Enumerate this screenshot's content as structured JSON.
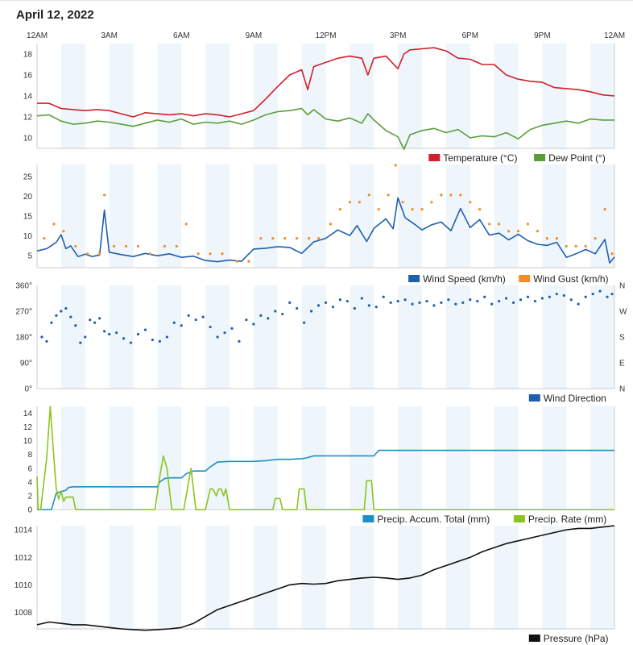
{
  "page_title": "April 12, 2022",
  "chart_data": [
    {
      "type": "line",
      "id": "temp",
      "x_ticks": [
        "12AM",
        "3AM",
        "6AM",
        "9AM",
        "12PM",
        "3PM",
        "6PM",
        "9PM",
        "12AM"
      ],
      "x_range_hours": [
        0,
        24
      ],
      "ylim": [
        9,
        19
      ],
      "y_ticks": [
        10,
        12,
        14,
        16,
        18
      ],
      "series": [
        {
          "name": "Temperature (°C)",
          "color": "#d0202a",
          "x": [
            0,
            0.5,
            1,
            1.5,
            2,
            2.5,
            3,
            3.5,
            4,
            4.5,
            5,
            5.5,
            6,
            6.5,
            7,
            7.5,
            8,
            8.5,
            9,
            9.5,
            10,
            10.5,
            11,
            11.25,
            11.5,
            12,
            12.5,
            13,
            13.5,
            13.75,
            14,
            14.5,
            15,
            15.25,
            15.5,
            16,
            16.5,
            17,
            17.5,
            18,
            18.5,
            19,
            19.5,
            20,
            20.5,
            21,
            21.5,
            22,
            22.5,
            23,
            23.5,
            24
          ],
          "y": [
            13.3,
            13.3,
            12.8,
            12.7,
            12.6,
            12.7,
            12.6,
            12.3,
            12.0,
            12.4,
            12.3,
            12.2,
            12.3,
            12.1,
            12.3,
            12.2,
            12.0,
            12.3,
            12.6,
            13.7,
            14.9,
            16.0,
            16.5,
            14.6,
            16.8,
            17.2,
            17.6,
            17.8,
            17.6,
            16.0,
            17.6,
            17.8,
            16.6,
            18.0,
            18.4,
            18.5,
            18.6,
            18.3,
            17.6,
            17.5,
            17.0,
            17.0,
            16.0,
            15.6,
            15.4,
            15.3,
            14.8,
            14.7,
            14.6,
            14.4,
            14.1,
            14.0
          ]
        },
        {
          "name": "Dew Point (°)",
          "color": "#5a9e3a",
          "x": [
            0,
            0.5,
            1,
            1.5,
            2,
            2.5,
            3,
            3.5,
            4,
            4.5,
            5,
            5.5,
            6,
            6.5,
            7,
            7.5,
            8,
            8.5,
            9,
            9.5,
            10,
            10.5,
            11,
            11.25,
            11.5,
            12,
            12.5,
            13,
            13.5,
            13.75,
            14,
            14.5,
            15,
            15.25,
            15.5,
            16,
            16.5,
            17,
            17.5,
            18,
            18.5,
            19,
            19.5,
            20,
            20.5,
            21,
            21.5,
            22,
            22.5,
            23,
            23.5,
            24
          ],
          "y": [
            12.1,
            12.2,
            11.6,
            11.3,
            11.4,
            11.6,
            11.5,
            11.3,
            11.1,
            11.4,
            11.7,
            11.5,
            11.8,
            11.3,
            11.5,
            11.4,
            11.6,
            11.3,
            11.7,
            12.2,
            12.5,
            12.6,
            12.8,
            12.2,
            12.7,
            11.8,
            11.6,
            11.9,
            11.4,
            12.3,
            11.7,
            10.7,
            10.1,
            8.9,
            10.3,
            10.7,
            10.9,
            10.5,
            10.8,
            10.0,
            10.2,
            10.1,
            10.5,
            9.9,
            10.8,
            11.2,
            11.4,
            11.6,
            11.4,
            11.8,
            11.7,
            11.7
          ]
        }
      ],
      "legend": [
        "Temperature (°C)",
        "Dew Point (°)"
      ]
    },
    {
      "type": "line+scatter",
      "id": "wind",
      "ylim": [
        2,
        28
      ],
      "y_ticks": [
        5,
        10,
        15,
        20,
        25
      ],
      "series": [
        {
          "name": "Wind Speed (km/h)",
          "color": "#1f5fae",
          "kind": "line",
          "x": [
            0,
            0.4,
            0.8,
            1.0,
            1.2,
            1.4,
            1.7,
            2,
            2.3,
            2.6,
            2.8,
            3,
            3.5,
            4,
            4.5,
            5,
            5.5,
            6,
            6.5,
            7,
            7.5,
            8,
            8.5,
            9,
            9.5,
            10,
            10.5,
            11,
            11.5,
            12,
            12.5,
            13,
            13.3,
            13.7,
            14,
            14.5,
            14.8,
            15,
            15.3,
            15.7,
            16,
            16.4,
            16.8,
            17.2,
            17.6,
            18,
            18.4,
            18.8,
            19.2,
            19.6,
            20,
            20.4,
            20.8,
            21.2,
            21.6,
            22,
            22.4,
            22.8,
            23.2,
            23.6,
            23.8,
            24
          ],
          "y": [
            6.2,
            6.8,
            8.4,
            10.3,
            6.8,
            7.5,
            4.8,
            5.4,
            4.8,
            5.2,
            16.5,
            5.9,
            5.3,
            4.8,
            5.6,
            5.0,
            5.5,
            4.6,
            4.9,
            3.8,
            3.5,
            3.9,
            3.6,
            6.7,
            6.9,
            7.3,
            7.1,
            5.6,
            8.5,
            9.4,
            11.5,
            10.1,
            12.6,
            8.6,
            11.9,
            14.3,
            11.8,
            19.6,
            14.6,
            12.9,
            11.5,
            12.8,
            13.5,
            11.3,
            16.9,
            12.1,
            14.1,
            10.2,
            10.7,
            9.0,
            10.4,
            8.8,
            7.9,
            7.6,
            8.4,
            4.6,
            5.5,
            6.6,
            5.5,
            9.1,
            3.2,
            4.7
          ]
        },
        {
          "name": "Wind Gust (km/h)",
          "color": "#f28c28",
          "kind": "scatter",
          "x": [
            0.3,
            0.7,
            1.1,
            1.6,
            2.1,
            2.6,
            2.8,
            3.2,
            3.7,
            4.2,
            4.7,
            5.3,
            5.8,
            6.2,
            6.7,
            7.2,
            7.7,
            8.3,
            8.8,
            9.3,
            9.8,
            10.3,
            10.8,
            11.3,
            11.7,
            12.2,
            12.6,
            13.0,
            13.4,
            13.8,
            14.2,
            14.6,
            14.9,
            15.2,
            15.6,
            16.0,
            16.4,
            16.8,
            17.2,
            17.6,
            18.0,
            18.4,
            18.8,
            19.2,
            19.6,
            20.0,
            20.4,
            20.8,
            21.2,
            21.6,
            22.0,
            22.4,
            22.8,
            23.2,
            23.6,
            23.9
          ],
          "y": [
            9.4,
            13.0,
            11.2,
            7.4,
            5.5,
            5.5,
            20.3,
            7.4,
            7.4,
            7.4,
            5.5,
            7.4,
            7.4,
            13.0,
            5.5,
            5.5,
            5.5,
            3.6,
            3.6,
            9.4,
            9.4,
            9.4,
            9.4,
            9.4,
            9.4,
            13.0,
            16.7,
            18.5,
            18.5,
            20.3,
            16.7,
            20.3,
            27.8,
            18.5,
            16.7,
            16.7,
            18.5,
            20.3,
            20.3,
            20.3,
            18.5,
            16.7,
            13.0,
            13.0,
            11.2,
            11.2,
            13.0,
            11.2,
            9.4,
            9.4,
            7.4,
            7.4,
            7.4,
            9.4,
            16.7,
            5.5
          ]
        }
      ],
      "legend": [
        "Wind Speed (km/h)",
        "Wind Gust (km/h)"
      ]
    },
    {
      "type": "scatter",
      "id": "direction",
      "ylim": [
        0,
        360
      ],
      "y_ticks": [
        0,
        90,
        180,
        270,
        360
      ],
      "y_tick_labels": [
        "0°",
        "90°",
        "180°",
        "270°",
        "360°"
      ],
      "right_labels": [
        "N",
        "E",
        "S",
        "W",
        "N"
      ],
      "series": [
        {
          "name": "Wind Direction",
          "color": "#1f5fae",
          "x": [
            0.2,
            0.4,
            0.6,
            0.8,
            1.0,
            1.2,
            1.4,
            1.6,
            1.8,
            2.0,
            2.2,
            2.4,
            2.6,
            2.8,
            3.0,
            3.3,
            3.6,
            3.9,
            4.2,
            4.5,
            4.8,
            5.1,
            5.4,
            5.7,
            6.0,
            6.3,
            6.6,
            6.9,
            7.2,
            7.5,
            7.8,
            8.1,
            8.4,
            8.7,
            9.0,
            9.3,
            9.6,
            9.9,
            10.2,
            10.5,
            10.8,
            11.1,
            11.4,
            11.7,
            12.0,
            12.3,
            12.6,
            12.9,
            13.2,
            13.5,
            13.8,
            14.1,
            14.4,
            14.7,
            15.0,
            15.3,
            15.6,
            15.9,
            16.2,
            16.5,
            16.8,
            17.1,
            17.4,
            17.7,
            18.0,
            18.3,
            18.6,
            18.9,
            19.2,
            19.5,
            19.8,
            20.1,
            20.4,
            20.7,
            21.0,
            21.3,
            21.6,
            21.9,
            22.2,
            22.5,
            22.8,
            23.1,
            23.4,
            23.7,
            23.9
          ],
          "y": [
            180,
            165,
            230,
            255,
            270,
            280,
            250,
            220,
            160,
            180,
            240,
            230,
            245,
            200,
            190,
            195,
            175,
            160,
            190,
            205,
            170,
            165,
            180,
            230,
            220,
            255,
            240,
            250,
            215,
            180,
            195,
            210,
            165,
            240,
            225,
            255,
            245,
            270,
            260,
            300,
            280,
            230,
            270,
            290,
            300,
            285,
            310,
            305,
            280,
            315,
            290,
            285,
            320,
            300,
            305,
            310,
            295,
            300,
            305,
            290,
            300,
            310,
            295,
            300,
            310,
            305,
            320,
            295,
            305,
            315,
            300,
            310,
            320,
            305,
            315,
            320,
            330,
            325,
            310,
            295,
            320,
            330,
            340,
            320,
            330
          ]
        }
      ],
      "legend": [
        "Wind Direction"
      ]
    },
    {
      "type": "line",
      "id": "precip",
      "ylim": [
        0,
        15
      ],
      "y_ticks": [
        0,
        2,
        4,
        6,
        8,
        10,
        12,
        14
      ],
      "series": [
        {
          "name": "Precip. Accum. Total (mm)",
          "color": "#1b8fc8",
          "x": [
            0,
            0.6,
            0.8,
            1.0,
            1.2,
            1.3,
            1.5,
            2.0,
            3.0,
            4.0,
            5.0,
            5.1,
            5.3,
            5.5,
            6.0,
            6.2,
            6.5,
            6.7,
            7.0,
            7.2,
            7.5,
            8.0,
            8.5,
            9.0,
            9.5,
            10.0,
            10.5,
            11.0,
            11.2,
            11.5,
            12.0,
            13.0,
            14.0,
            14.2,
            14.5,
            15.0,
            16.0,
            18.0,
            20.0,
            22.0,
            24.0
          ],
          "y": [
            0,
            0,
            2.4,
            2.6,
            2.8,
            3.2,
            3.3,
            3.3,
            3.3,
            3.3,
            3.3,
            4.0,
            4.5,
            4.6,
            4.6,
            5.2,
            5.6,
            5.6,
            5.6,
            6.2,
            6.9,
            7.0,
            7.0,
            7.0,
            7.1,
            7.3,
            7.3,
            7.4,
            7.5,
            7.8,
            7.8,
            7.8,
            7.8,
            8.6,
            8.6,
            8.6,
            8.6,
            8.6,
            8.6,
            8.6,
            8.6
          ]
        },
        {
          "name": "Precip. Rate (mm)",
          "color": "#8cc41f",
          "x": [
            0,
            0.05,
            0.15,
            0.4,
            0.55,
            0.7,
            0.8,
            0.9,
            1.0,
            1.1,
            1.2,
            1.35,
            1.5,
            1.6,
            1.7,
            1.8,
            2.0,
            3.0,
            4.0,
            4.9,
            5.1,
            5.25,
            5.4,
            5.6,
            6.1,
            6.25,
            6.4,
            6.6,
            7.0,
            7.2,
            7.3,
            7.45,
            7.55,
            7.65,
            7.75,
            7.85,
            8.0,
            8.5,
            9.0,
            9.8,
            9.9,
            10.0,
            10.1,
            10.2,
            10.8,
            10.9,
            11.0,
            11.1,
            11.2,
            12.0,
            13.0,
            13.6,
            13.7,
            13.8,
            13.9,
            14.0,
            15.0,
            18.0,
            21.0,
            24.0
          ],
          "y": [
            4.8,
            0,
            0,
            7.5,
            15,
            7.5,
            3,
            1.5,
            2.7,
            1.2,
            1.8,
            1.8,
            1.8,
            0,
            0,
            0,
            0,
            0,
            0,
            0,
            4.8,
            7.8,
            6,
            0,
            0,
            3,
            6,
            0,
            0,
            3,
            3,
            2,
            3,
            3,
            2,
            3,
            0,
            0,
            0,
            0,
            1.6,
            1.6,
            1.6,
            0,
            0,
            3,
            3,
            3,
            0,
            0,
            0,
            0,
            4.2,
            4.2,
            4.2,
            0,
            0,
            0,
            0,
            0
          ]
        }
      ],
      "legend": [
        "Precip. Accum. Total (mm)",
        "Precip. Rate (mm)"
      ]
    },
    {
      "type": "line",
      "id": "pressure",
      "ylim": [
        1006.8,
        1014.3
      ],
      "y_ticks": [
        1008,
        1010,
        1012,
        1014
      ],
      "series": [
        {
          "name": "Pressure (hPa)",
          "color": "#111111",
          "x": [
            0,
            0.5,
            1,
            1.5,
            2,
            2.5,
            3,
            3.5,
            4,
            4.5,
            5,
            5.5,
            6,
            6.5,
            7,
            7.5,
            8,
            8.5,
            9,
            9.5,
            10,
            10.5,
            11,
            11.5,
            12,
            12.5,
            13,
            13.5,
            14,
            14.5,
            15,
            15.5,
            16,
            16.5,
            17,
            17.5,
            18,
            18.5,
            19,
            19.5,
            20,
            20.5,
            21,
            21.5,
            22,
            22.5,
            23,
            23.5,
            24
          ],
          "y": [
            1007.1,
            1007.3,
            1007.2,
            1007.1,
            1007.1,
            1007.0,
            1006.9,
            1006.8,
            1006.75,
            1006.7,
            1006.75,
            1006.8,
            1006.9,
            1007.2,
            1007.7,
            1008.2,
            1008.5,
            1008.8,
            1009.1,
            1009.4,
            1009.7,
            1010.0,
            1010.1,
            1010.05,
            1010.1,
            1010.3,
            1010.4,
            1010.5,
            1010.55,
            1010.5,
            1010.4,
            1010.5,
            1010.7,
            1011.1,
            1011.4,
            1011.7,
            1012.0,
            1012.4,
            1012.7,
            1013.0,
            1013.2,
            1013.4,
            1013.6,
            1013.8,
            1014.0,
            1014.1,
            1014.1,
            1014.2,
            1014.3
          ]
        }
      ],
      "legend": [
        "Pressure (hPa)"
      ]
    }
  ]
}
